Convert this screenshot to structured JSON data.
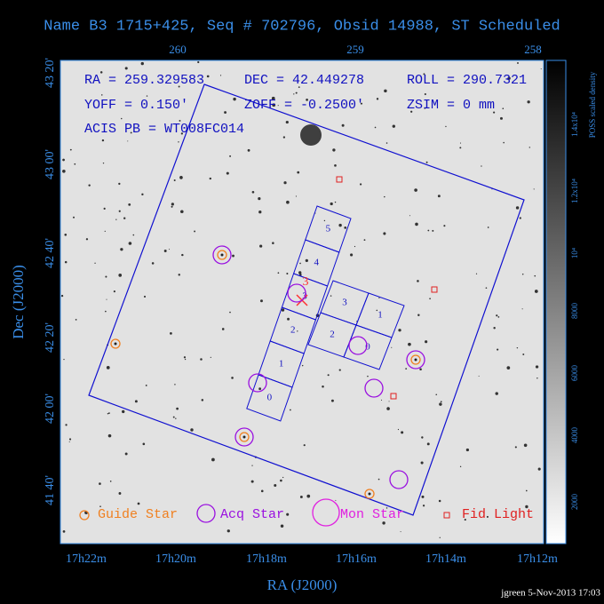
{
  "header": {
    "title": "Name B3 1715+425, Seq # 702796, Obsid 14988, ST Scheduled"
  },
  "axes": {
    "x_title": "RA (J2000)",
    "y_title": "Dec (J2000)",
    "top_ticks": [
      "260",
      "259",
      "258"
    ],
    "bottom_ticks": [
      "17h22m",
      "17h20m",
      "17h18m",
      "17h16m",
      "17h14m",
      "17h12m"
    ],
    "left_ticks": [
      "43 20'",
      "43 00'",
      "42 40'",
      "42 20'",
      "42 00'",
      "41 40'"
    ]
  },
  "colorbar": {
    "title": "POSS scaled density",
    "ticks": [
      "1.4x10⁴",
      "1.2x10⁴",
      "10⁴",
      "8000",
      "6000",
      "4000",
      "2000"
    ]
  },
  "info": [
    "RA = 259.329583",
    "DEC = 42.449278",
    "ROLL = 290.7321",
    "YOFF =   0.150'",
    "ZOFF = -0.2500'",
    "ZSIM = 0 mm",
    "ACIS PB = WT008FC014"
  ],
  "chips": {
    "s_array": [
      "0",
      "1",
      "2",
      "3",
      "4",
      "5"
    ],
    "i_array": [
      "3",
      "1",
      "2",
      "0"
    ],
    "aimpoint": "3"
  },
  "legend": [
    "Guide Star",
    "Acq Star",
    "Mon Star",
    "Fid Light"
  ],
  "footer": "jgreen  5-Nov-2013 17:03"
}
